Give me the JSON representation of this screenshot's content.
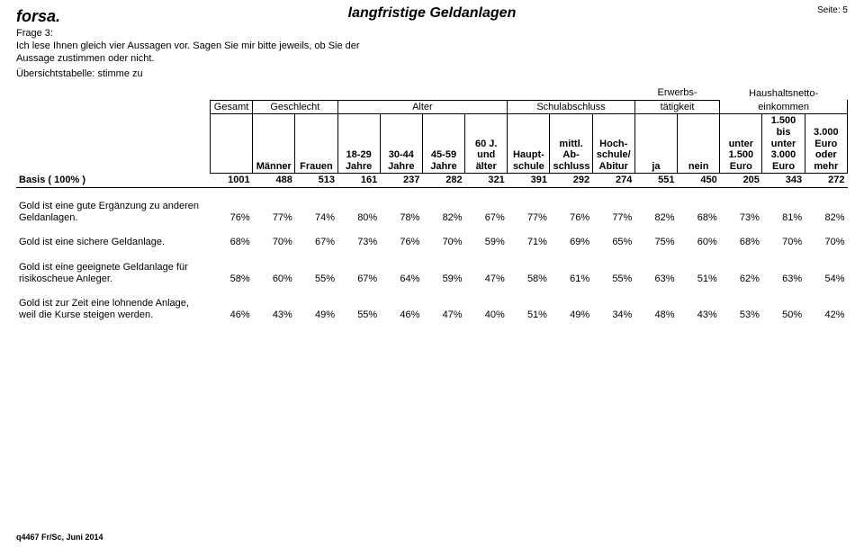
{
  "brand": "forsa.",
  "title": "langfristige Geldanlagen",
  "page_label": "Seite: 5",
  "frage_label": "Frage 3:",
  "frage_text1": "Ich lese Ihnen gleich vier Aussagen vor. Sagen Sie mir bitte jeweils, ob Sie der",
  "frage_text2": "Aussage zustimmen oder nicht.",
  "uebersicht": "Übersichtstabelle: stimme zu",
  "header": {
    "gesamt": "Gesamt",
    "geschlecht": "Geschlecht",
    "alter": "Alter",
    "schulabschluss": "Schulabschluss",
    "erwerb1": "Erwerbs-",
    "erwerb2": "tätigkeit",
    "haushalt1": "Haushaltsnetto-",
    "haushalt2": "einkommen",
    "maenner": "Männer",
    "frauen": "Frauen",
    "a18": "18-29\nJahre",
    "a30": "30-44\nJahre",
    "a45": "45-59\nJahre",
    "a60": "60 J.\nund\nälter",
    "haupt": "Haupt-\nschule",
    "mittl": "mittl.\nAb-\nschluss",
    "hoch": "Hoch-\nschule/\nAbitur",
    "ja": "ja",
    "nein": "nein",
    "e1": "unter\n1.500\nEuro",
    "e2": "1.500\nbis\nunter\n3.000\nEuro",
    "e3": "3.000\nEuro\noder\nmehr"
  },
  "basis_label": "Basis ( 100% )",
  "basis": [
    "1001",
    "488",
    "513",
    "161",
    "237",
    "282",
    "321",
    "391",
    "292",
    "274",
    "551",
    "450",
    "205",
    "343",
    "272"
  ],
  "rows": [
    {
      "label": "Gold ist eine gute Ergänzung zu anderen Geldanlagen.",
      "vals": [
        "76%",
        "77%",
        "74%",
        "80%",
        "78%",
        "82%",
        "67%",
        "77%",
        "76%",
        "77%",
        "82%",
        "68%",
        "73%",
        "81%",
        "82%"
      ]
    },
    {
      "label": "Gold ist eine sichere Geldanlage.",
      "vals": [
        "68%",
        "70%",
        "67%",
        "73%",
        "76%",
        "70%",
        "59%",
        "71%",
        "69%",
        "65%",
        "75%",
        "60%",
        "68%",
        "70%",
        "70%"
      ]
    },
    {
      "label": "Gold ist eine geeignete Geldanlage für risikoscheue Anleger.",
      "vals": [
        "58%",
        "60%",
        "55%",
        "67%",
        "64%",
        "59%",
        "47%",
        "58%",
        "61%",
        "55%",
        "63%",
        "51%",
        "62%",
        "63%",
        "54%"
      ]
    },
    {
      "label": "Gold ist zur Zeit eine lohnende Anlage, weil die Kurse steigen werden.",
      "vals": [
        "46%",
        "43%",
        "49%",
        "55%",
        "46%",
        "47%",
        "40%",
        "51%",
        "49%",
        "34%",
        "48%",
        "43%",
        "53%",
        "50%",
        "42%"
      ]
    }
  ],
  "footer": "q4467 Fr/Sc, Juni 2014"
}
